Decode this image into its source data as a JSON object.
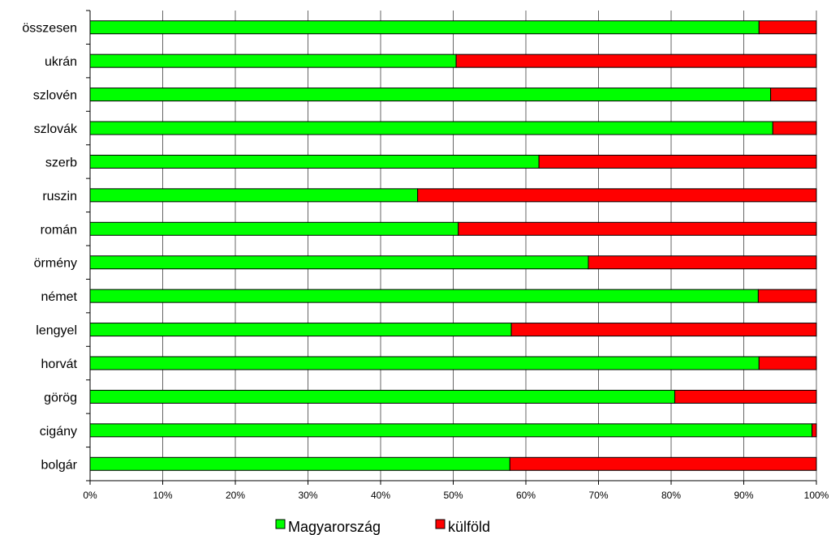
{
  "chart_data": {
    "type": "bar",
    "orientation": "horizontal",
    "stacked": "percent",
    "title": "",
    "xlabel": "",
    "ylabel": "",
    "xlim": [
      0,
      100
    ],
    "x_ticks": [
      "0%",
      "10%",
      "20%",
      "30%",
      "40%",
      "50%",
      "60%",
      "70%",
      "80%",
      "90%",
      "100%"
    ],
    "grid": "vertical",
    "legend_position": "bottom",
    "categories": [
      "összesen",
      "ukrán",
      "szlovén",
      "szlovák",
      "szerb",
      "ruszin",
      "román",
      "örmény",
      "német",
      "lengyel",
      "horvát",
      "görög",
      "cigány",
      "bolgár"
    ],
    "series": [
      {
        "name": "Magyarország",
        "color": "#00ff00",
        "values": [
          92.1,
          50.4,
          93.7,
          94.0,
          61.8,
          45.1,
          50.7,
          68.6,
          92.0,
          58.0,
          92.1,
          80.5,
          99.4,
          57.8
        ]
      },
      {
        "name": "külföld",
        "color": "#ff0000",
        "values": [
          7.9,
          49.6,
          6.3,
          6.0,
          38.2,
          54.9,
          49.3,
          31.4,
          8.0,
          42.0,
          7.9,
          19.5,
          0.6,
          42.2
        ]
      }
    ]
  }
}
